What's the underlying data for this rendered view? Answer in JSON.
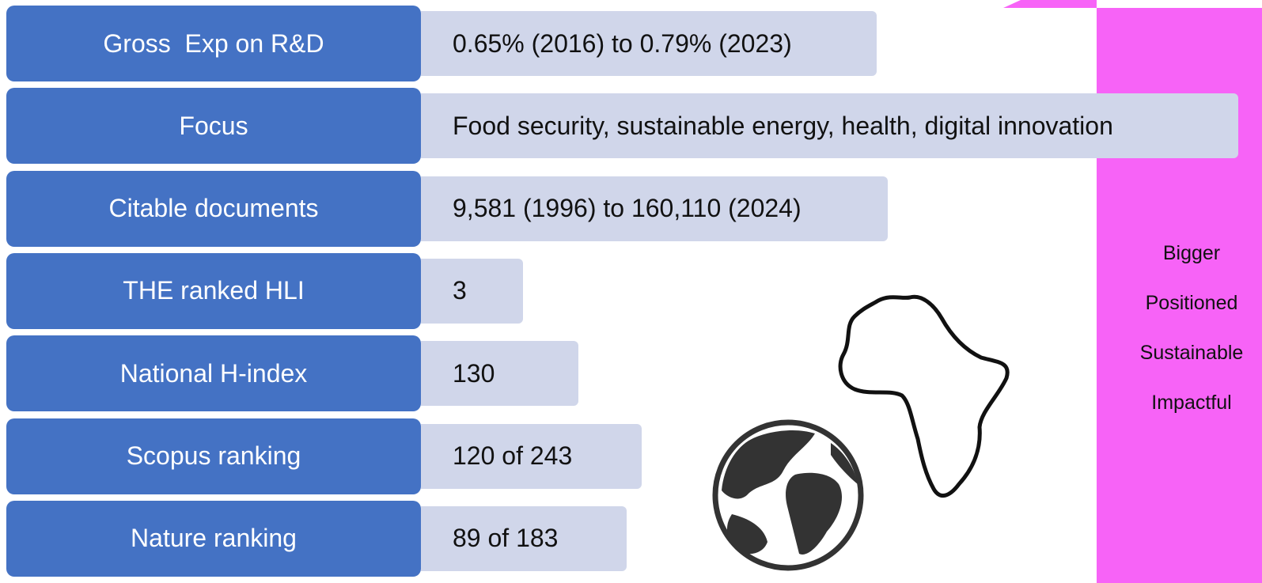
{
  "rows": [
    {
      "label": "Gross  Exp on R&D",
      "value": "0.65% (2016) to 0.79% (2023)"
    },
    {
      "label": "Focus",
      "value": "Food security, sustainable energy, health, digital innovation"
    },
    {
      "label": "Citable documents",
      "value": "9,581 (1996) to 160,110 (2024)"
    },
    {
      "label": "THE ranked HLI",
      "value": "3"
    },
    {
      "label": "National H-index",
      "value": "130"
    },
    {
      "label": "Scopus ranking",
      "value": "120 of 243"
    },
    {
      "label": "Nature ranking",
      "value": "89 of 183"
    }
  ],
  "panel": {
    "words": [
      "Bigger",
      "Positioned",
      "Sustainable",
      "Impactful"
    ]
  }
}
